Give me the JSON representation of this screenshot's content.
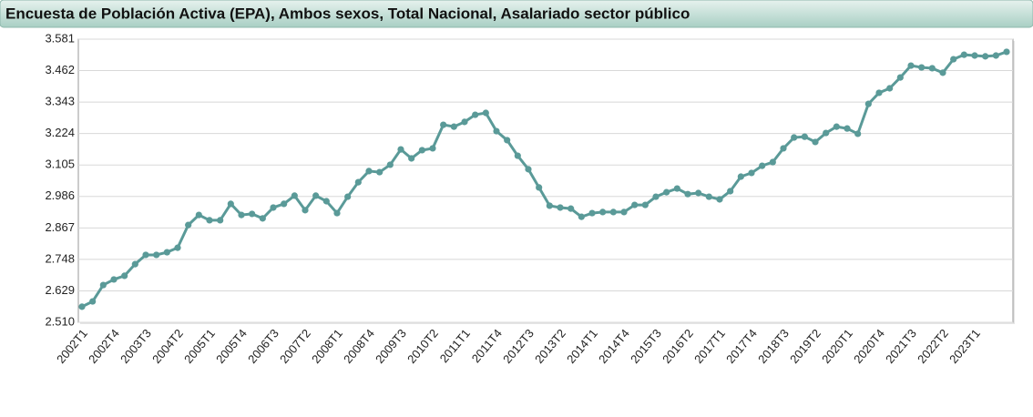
{
  "chart_data": {
    "type": "line",
    "title": "Encuesta de Población Activa (EPA), Ambos sexos, Total Nacional, Asalariado sector público",
    "categories": [
      "2002T1",
      null,
      null,
      "2002T4",
      null,
      null,
      "2003T3",
      null,
      null,
      "2004T2",
      null,
      null,
      "2005T1",
      null,
      null,
      "2005T4",
      null,
      null,
      "2006T3",
      null,
      null,
      "2007T2",
      null,
      null,
      "2008T1",
      null,
      null,
      "2008T4",
      null,
      null,
      "2009T3",
      null,
      null,
      "2010T2",
      null,
      null,
      "2011T1",
      null,
      null,
      "2011T4",
      null,
      null,
      "2012T3",
      null,
      null,
      "2013T2",
      null,
      null,
      "2014T1",
      null,
      null,
      "2014T4",
      null,
      null,
      "2015T3",
      null,
      null,
      "2016T2",
      null,
      null,
      "2017T1",
      null,
      null,
      "2017T4",
      null,
      null,
      "2018T3",
      null,
      null,
      "2019T2",
      null,
      null,
      "2020T1",
      null,
      null,
      "2020T4",
      null,
      null,
      "2021T3",
      null,
      null,
      "2022T2",
      null,
      null,
      "2023T1",
      null,
      null,
      null
    ],
    "series": [
      {
        "name": "Asalariado sector público",
        "color": "#5a9a98",
        "values": [
          2569,
          2589,
          2651,
          2672,
          2686,
          2730,
          2765,
          2765,
          2775,
          2792,
          2878,
          2916,
          2896,
          2896,
          2958,
          2916,
          2920,
          2903,
          2944,
          2958,
          2989,
          2934,
          2989,
          2968,
          2923,
          2985,
          3040,
          3082,
          3078,
          3106,
          3164,
          3130,
          3161,
          3168,
          3257,
          3250,
          3268,
          3295,
          3302,
          3233,
          3199,
          3140,
          3089,
          3020,
          2951,
          2944,
          2940,
          2909,
          2923,
          2927,
          2927,
          2927,
          2954,
          2954,
          2985,
          3002,
          3016,
          2995,
          2999,
          2985,
          2975,
          3006,
          3061,
          3075,
          3102,
          3116,
          3168,
          3209,
          3212,
          3192,
          3226,
          3250,
          3243,
          3223,
          3336,
          3378,
          3395,
          3436,
          3481,
          3474,
          3471,
          3454,
          3505,
          3522,
          3519,
          3516,
          3519,
          3533
        ]
      }
    ],
    "ylim": [
      2510,
      3581
    ],
    "yticks": [
      {
        "value": 2510,
        "label": "2.510"
      },
      {
        "value": 2629,
        "label": "2.629"
      },
      {
        "value": 2748,
        "label": "2.748"
      },
      {
        "value": 2867,
        "label": "2.867"
      },
      {
        "value": 2986,
        "label": "2.986"
      },
      {
        "value": 3105,
        "label": "3.105"
      },
      {
        "value": 3224,
        "label": "3.224"
      },
      {
        "value": 3343,
        "label": "3.343"
      },
      {
        "value": 3462,
        "label": "3.462"
      },
      {
        "value": 3581,
        "label": "3.581"
      }
    ],
    "grid": true
  }
}
